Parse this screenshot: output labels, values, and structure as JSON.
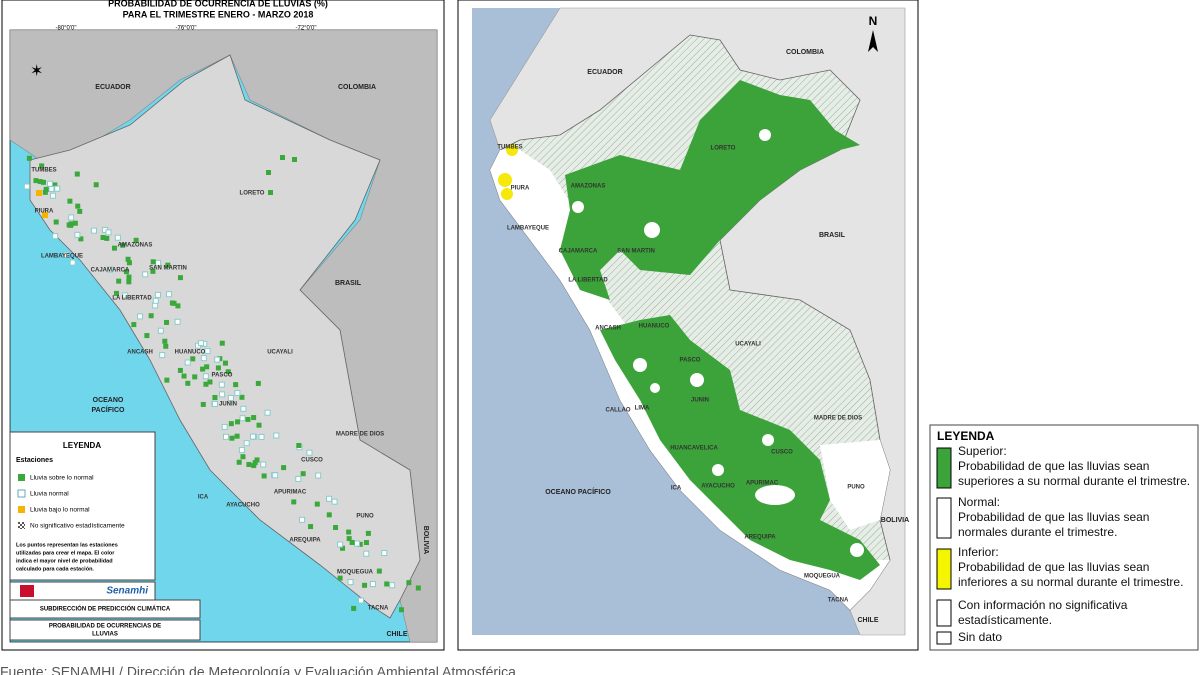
{
  "left_map": {
    "title": [
      "PROBABILIDAD DE OCURRENCIA DE LLUVIAS (%)",
      "PARA EL TRIMESTRE ENERO - MARZO 2018"
    ],
    "lon_labels": [
      "-80°0'0\"",
      "-76°0'0\"",
      "-72°0'0\""
    ],
    "countries": [
      "ECUADOR",
      "COLOMBIA",
      "BRASIL",
      "BOLIVIA",
      "CHILE"
    ],
    "ocean": [
      "OCEANO",
      "PACÍFICO"
    ],
    "regions": [
      "TUMBES",
      "PIURA",
      "LAMBAYEQUE",
      "AMAZONAS",
      "CAJAMARCA",
      "SAN MARTIN",
      "LA LIBERTAD",
      "LORETO",
      "ANCASH",
      "HUANUCO",
      "UCAYALI",
      "PASCO",
      "JUNIN",
      "MADRE DE DIOS",
      "ICA",
      "AYACUCHO",
      "APURIMAC",
      "CUSCO",
      "PUNO",
      "AREQUIPA",
      "MOQUEGUA",
      "TACNA"
    ],
    "legend": {
      "title": "LEYENDA",
      "subtitle": "Estaciones",
      "items": [
        "Lluvia sobre lo normal",
        "Lluvia normal",
        "Lluvia bajo lo normal",
        "No significativo estadísticamente"
      ],
      "note": [
        "Los puntos representan las estaciones",
        "utilizadas para crear el mapa. El color",
        "indica el mayor nivel de probabilidad",
        "calculado para cada estación."
      ]
    },
    "logo": "Senamhi",
    "footer": [
      "SUBDIRECCIÓN DE PREDICCIÓN CLIMÁTICA",
      "PROBABILIDAD DE OCURRENCIAS DE",
      "LLUVIAS"
    ]
  },
  "right_map": {
    "north": "N",
    "countries": [
      "ECUADOR",
      "COLOMBIA",
      "BRASIL",
      "BOLIVIA",
      "CHILE"
    ],
    "ocean": "OCEANO PACÍFICO",
    "regions": [
      "TUMBES",
      "PIURA",
      "LAMBAYEQUE",
      "AMAZONAS",
      "CAJAMARCA",
      "SAN MARTIN",
      "LA LIBERTAD",
      "LORETO",
      "ANCASH",
      "HUANUCO",
      "UCAYALI",
      "PASCO",
      "JUNIN",
      "CALLAO",
      "LIMA",
      "MADRE DE DIOS",
      "HUANCAVELICA",
      "CUSCO",
      "ICA",
      "AYACUCHO",
      "APURIMAC",
      "PUNO",
      "AREQUIPA",
      "MOQUEGUA",
      "TACNA"
    ]
  },
  "legend": {
    "title": "LEYENDA",
    "items": [
      {
        "label": "Superior:",
        "text": [
          "Probabilidad de que las lluvias sean",
          "superiores a su normal durante el trimestre."
        ]
      },
      {
        "label": "Normal:",
        "text": [
          "Probabilidad de que las lluvias sean",
          "normales durante el trimestre."
        ]
      },
      {
        "label": "Inferior:",
        "text": [
          "Probabilidad de que las lluvias sean",
          "inferiores a su normal durante el trimestre."
        ]
      },
      {
        "label": "Con información no significativa",
        "text": [
          "estadísticamente."
        ]
      },
      {
        "label": "Sin dato",
        "text": []
      }
    ]
  },
  "source": "Fuente: SENAMHI / Dirección de Meteorología y Evaluación Ambiental Atmosférica"
}
